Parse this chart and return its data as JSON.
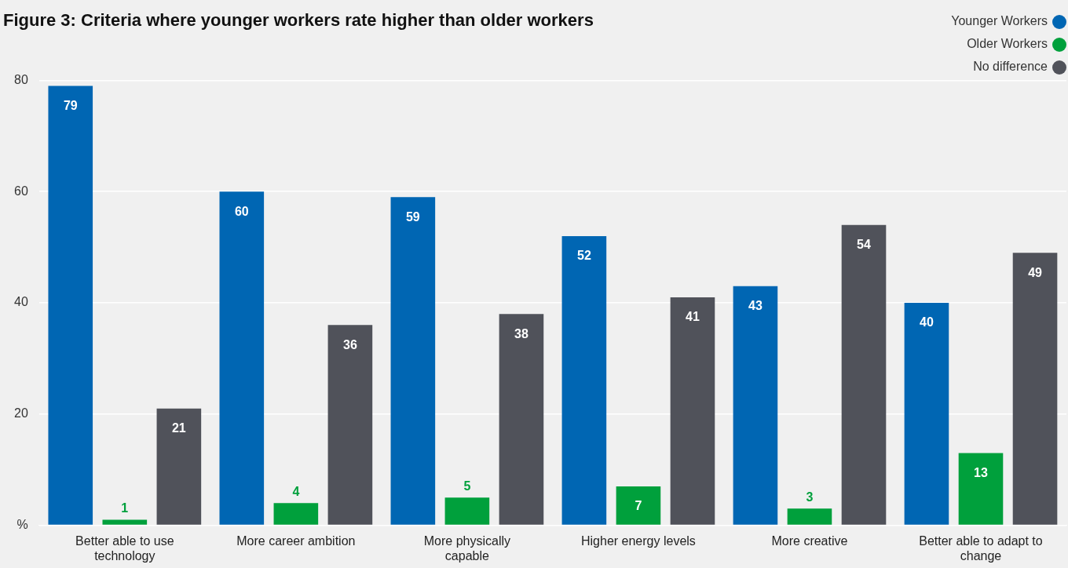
{
  "chart_data": {
    "type": "bar",
    "title": "Figure 3: Criteria where younger workers rate higher than older workers",
    "categories": [
      "Better able to use technology",
      "More career ambition",
      "More physically capable",
      "Higher energy levels",
      "More creative",
      "Better able to adapt to change"
    ],
    "series": [
      {
        "name": "Younger Workers",
        "color": "#0066b3",
        "values": [
          79,
          60,
          59,
          52,
          43,
          40
        ]
      },
      {
        "name": "Older Workers",
        "color": "#00a03c",
        "values": [
          1,
          4,
          5,
          7,
          3,
          13
        ]
      },
      {
        "name": "No difference",
        "color": "#50525a",
        "values": [
          21,
          36,
          38,
          41,
          54,
          49
        ]
      }
    ],
    "ylim": [
      0,
      80
    ],
    "yticks": [
      {
        "value": 0,
        "label": "%"
      },
      20,
      40,
      60,
      80
    ],
    "grid": "y",
    "legend": "top right",
    "data_labels": true
  }
}
